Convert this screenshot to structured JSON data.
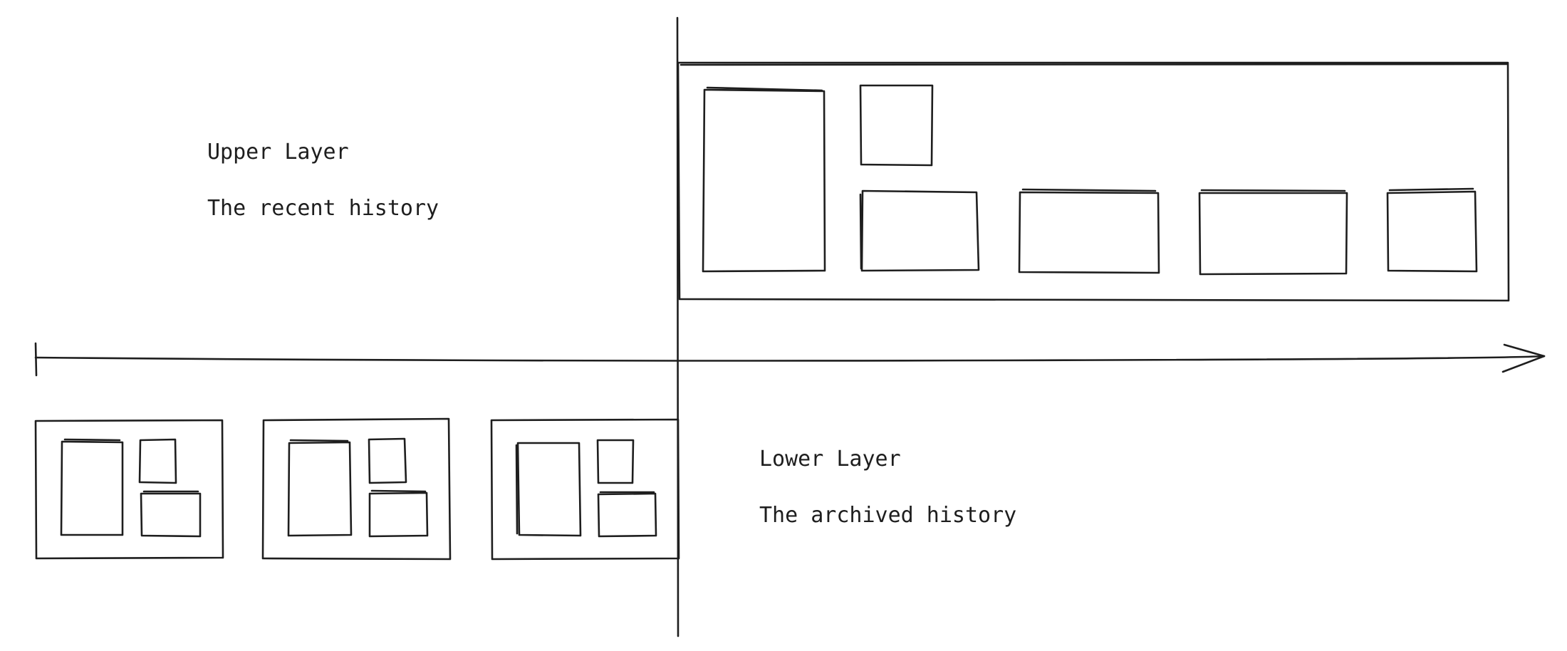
{
  "upper_layer": {
    "title": "Upper Layer",
    "subtitle": "The recent history"
  },
  "lower_layer": {
    "title": "Lower Layer",
    "subtitle": "The archived history"
  },
  "colors": {
    "stroke": "#1e1e1e",
    "background": "#ffffff"
  }
}
